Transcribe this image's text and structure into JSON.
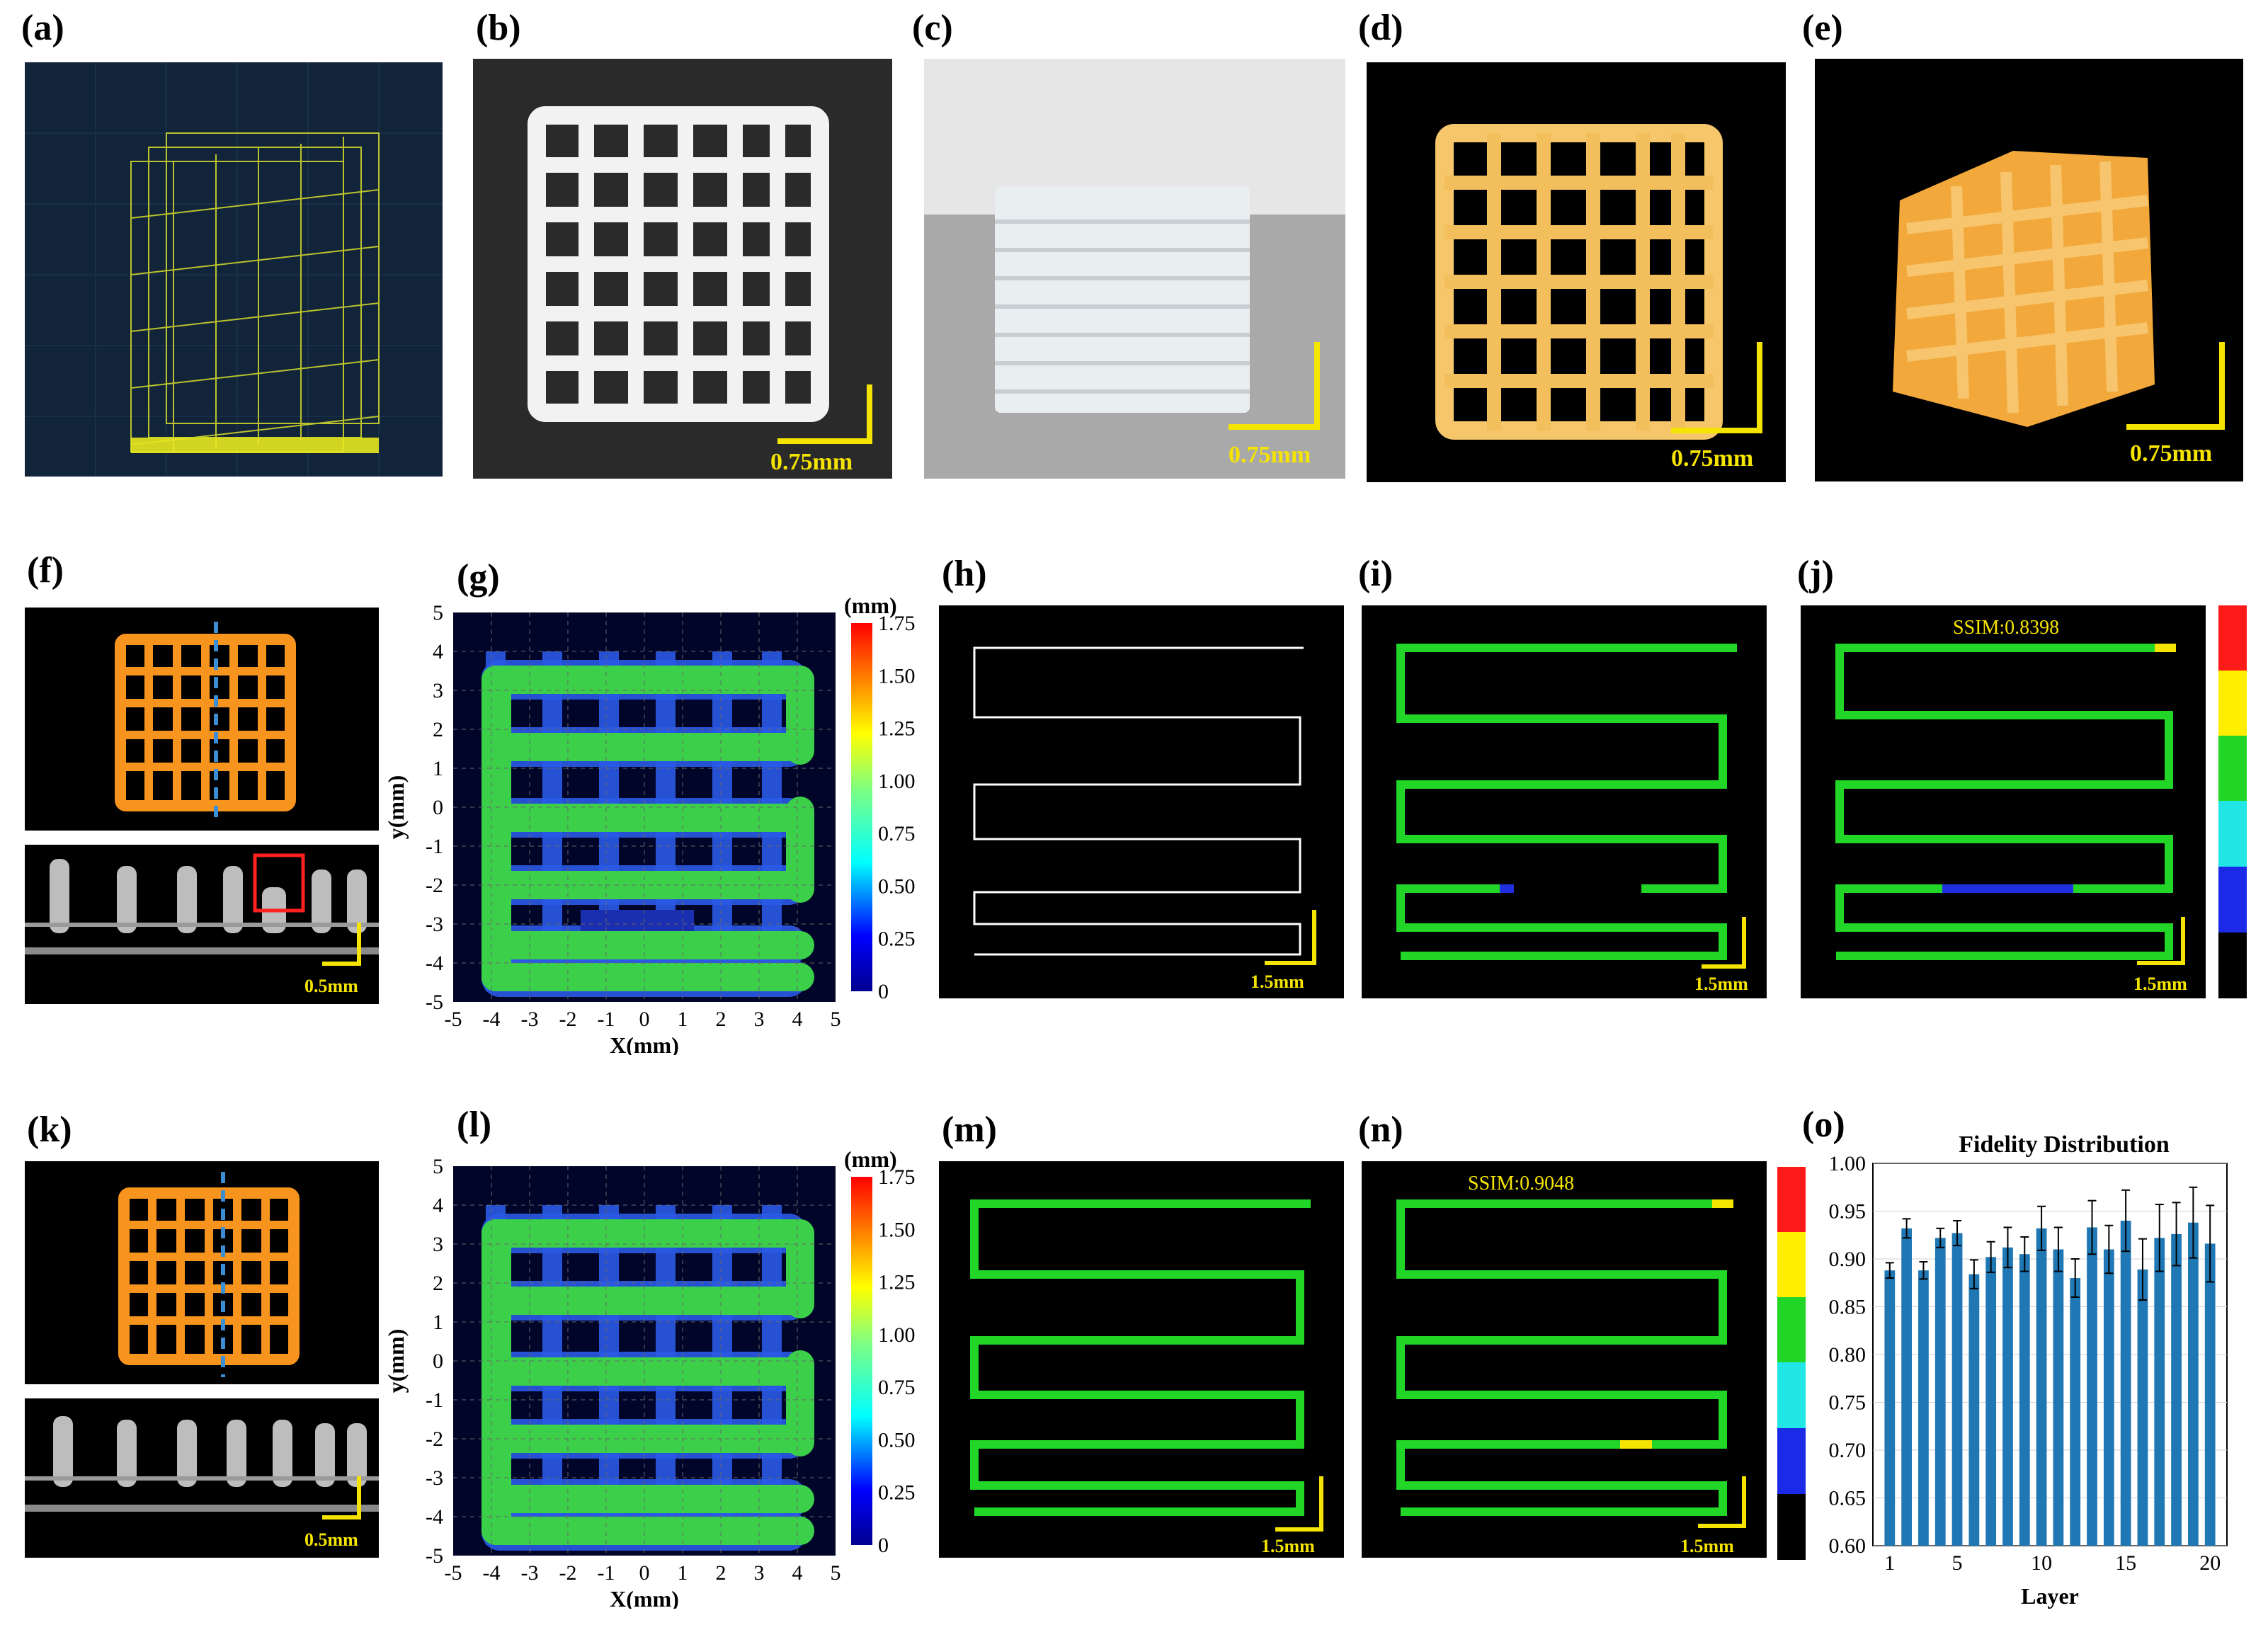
{
  "panel_labels": {
    "a": "(a)",
    "b": "(b)",
    "c": "(c)",
    "d": "(d)",
    "e": "(e)",
    "f": "(f)",
    "g": "(g)",
    "h": "(h)",
    "i": "(i)",
    "j": "(j)",
    "k": "(k)",
    "l": "(l)",
    "m": "(m)",
    "n": "(n)",
    "o": "(o)"
  },
  "scale_bars": {
    "top_row": "0.75mm",
    "path": "1.5mm",
    "oct": "0.5mm"
  },
  "ssim": {
    "j": "SSIM:0.8398",
    "n": "SSIM:0.9048"
  },
  "heatmaps": {
    "unit": "(mm)",
    "colorbar_ticks": [
      "1.75",
      "1.50",
      "1.25",
      "1.00",
      "0.75",
      "0.50",
      "0.25",
      "0"
    ],
    "y_ticks": [
      "5",
      "4",
      "3",
      "2",
      "1",
      "0",
      "-1",
      "-2",
      "-3",
      "-4",
      "-5"
    ],
    "x_ticks": [
      "-5",
      "-4",
      "-3",
      "-2",
      "-1",
      "0",
      "1",
      "2",
      "3",
      "4",
      "5"
    ],
    "xlabel": "X(mm)",
    "ylabel": "y(mm)"
  },
  "colors": {
    "path_green": "#22d628",
    "heat_green": "#3cd04a",
    "heat_blue": "#2a5ae6",
    "scale_yellow": "#f5e400",
    "bar_blue": "#1f77b4"
  },
  "chart_data": {
    "type": "bar",
    "title": "Fidelity Distribution",
    "xlabel": "Layer",
    "ylabel": "",
    "ylim": [
      0.6,
      1.0
    ],
    "yticks": [
      "1.00",
      "0.95",
      "0.90",
      "0.85",
      "0.80",
      "0.75",
      "0.70",
      "0.65",
      "0.60"
    ],
    "xticks": [
      "1",
      "5",
      "10",
      "15",
      "20"
    ],
    "categories": [
      1,
      2,
      3,
      4,
      5,
      6,
      7,
      8,
      9,
      10,
      11,
      12,
      13,
      14,
      15,
      16,
      17,
      18,
      19,
      20
    ],
    "values": [
      0.888,
      0.932,
      0.888,
      0.922,
      0.927,
      0.884,
      0.902,
      0.912,
      0.905,
      0.932,
      0.91,
      0.88,
      0.933,
      0.91,
      0.94,
      0.889,
      0.922,
      0.926,
      0.938,
      0.916
    ],
    "errors": [
      0.008,
      0.01,
      0.009,
      0.01,
      0.013,
      0.015,
      0.016,
      0.021,
      0.018,
      0.023,
      0.023,
      0.02,
      0.028,
      0.025,
      0.032,
      0.032,
      0.035,
      0.033,
      0.037,
      0.04
    ]
  }
}
